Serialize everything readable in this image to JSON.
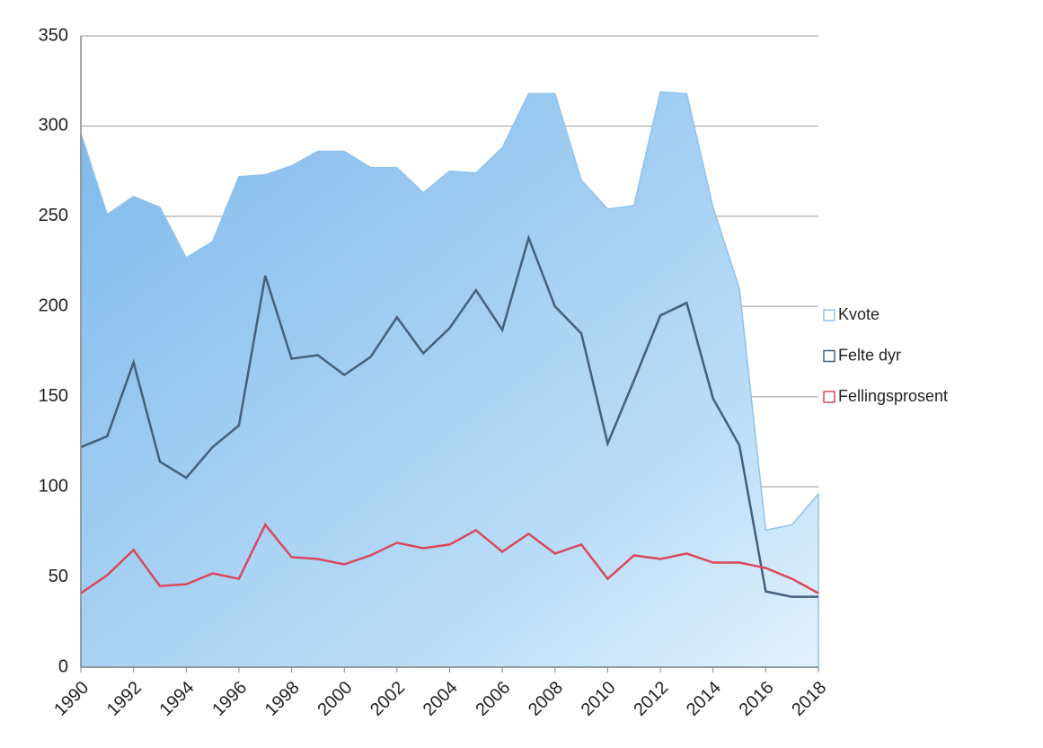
{
  "chart_data": {
    "type": "area-line",
    "x": [
      1990,
      1991,
      1992,
      1993,
      1994,
      1995,
      1996,
      1997,
      1998,
      1999,
      2000,
      2001,
      2002,
      2003,
      2004,
      2005,
      2006,
      2007,
      2008,
      2009,
      2010,
      2011,
      2012,
      2013,
      2014,
      2015,
      2016,
      2017,
      2018
    ],
    "xlim": [
      1990,
      2018
    ],
    "xticks": [
      1990,
      1992,
      1994,
      1996,
      1998,
      2000,
      2002,
      2004,
      2006,
      2008,
      2010,
      2012,
      2014,
      2016,
      2018
    ],
    "ylim": [
      0,
      350
    ],
    "yticks": [
      0,
      50,
      100,
      150,
      200,
      250,
      300,
      350
    ],
    "grid": true,
    "legend": "right",
    "series": [
      {
        "name": "Kvote",
        "color": "#8fc3ee",
        "kind": "area",
        "values": [
          296,
          251,
          261,
          255,
          227,
          236,
          272,
          273,
          278,
          286,
          286,
          277,
          277,
          263,
          275,
          274,
          288,
          318,
          318,
          270,
          254,
          256,
          319,
          318,
          255,
          210,
          76,
          79,
          96
        ]
      },
      {
        "name": "Felte dyr",
        "color": "#44607a",
        "kind": "line",
        "values": [
          122,
          128,
          169,
          114,
          105,
          122,
          134,
          217,
          171,
          173,
          162,
          172,
          194,
          174,
          188,
          209,
          187,
          238,
          200,
          185,
          124,
          159,
          195,
          202,
          149,
          123,
          42,
          39,
          39
        ]
      },
      {
        "name": "Fellingsprosent",
        "color": "#d9485a",
        "kind": "line",
        "values": [
          41,
          51,
          65,
          45,
          46,
          52,
          49,
          79,
          61,
          60,
          57,
          62,
          69,
          66,
          68,
          76,
          64,
          74,
          63,
          68,
          49,
          62,
          60,
          63,
          58,
          58,
          55,
          49,
          41
        ]
      }
    ]
  }
}
